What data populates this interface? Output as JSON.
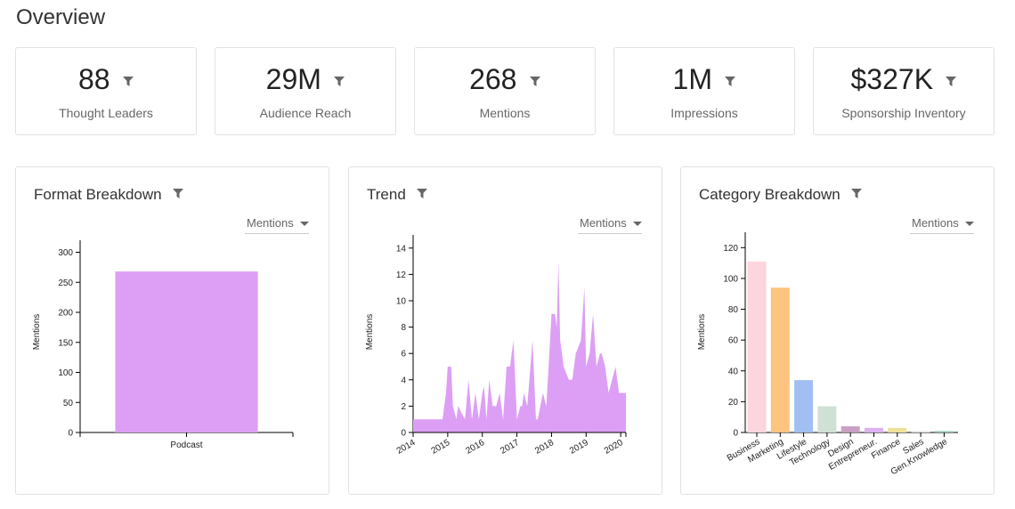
{
  "header": {
    "title": "Overview"
  },
  "stats": [
    {
      "value": "88",
      "label": "Thought Leaders"
    },
    {
      "value": "29M",
      "label": "Audience Reach"
    },
    {
      "value": "268",
      "label": "Mentions"
    },
    {
      "value": "1M",
      "label": "Impressions"
    },
    {
      "value": "$327K",
      "label": "Sponsorship Inventory"
    }
  ],
  "panels": {
    "format": {
      "title": "Format Breakdown",
      "metric": "Mentions"
    },
    "trend": {
      "title": "Trend",
      "metric": "Mentions"
    },
    "category": {
      "title": "Category Breakdown",
      "metric": "Mentions"
    }
  },
  "icons": {
    "filter": "filter-funnel-icon",
    "dropdown": "caret-down-icon"
  },
  "colors": {
    "bar_format": "#dd9ff5",
    "area_trend": "#dd9ff5",
    "category_bars": [
      "#fdd5de",
      "#fcc47e",
      "#a1bff0",
      "#cfe0d4",
      "#c8a0c3",
      "#dcb1f0",
      "#eee29a",
      "#e6e6e6",
      "#9fd0bc"
    ]
  },
  "chart_data": [
    {
      "type": "bar",
      "title": "",
      "categories": [
        "Podcast"
      ],
      "values": [
        268
      ],
      "xlabel": "",
      "ylabel": "Mentions",
      "ylim": [
        0,
        320
      ],
      "yticks": [
        0,
        50,
        100,
        150,
        200,
        250,
        300
      ]
    },
    {
      "type": "area",
      "title": "",
      "xlabel": "",
      "ylabel": "Mentions",
      "ylim": [
        0,
        15
      ],
      "yticks": [
        0,
        2,
        4,
        6,
        8,
        10,
        12,
        14
      ],
      "xticks": [
        "2014",
        "2015",
        "2016",
        "2017",
        "2018",
        "2019",
        "2020"
      ],
      "xlim": [
        2014.0,
        2020.15
      ],
      "x": [
        2014.0,
        2014.5,
        2014.85,
        2014.95,
        2015.0,
        2015.1,
        2015.15,
        2015.25,
        2015.3,
        2015.5,
        2015.6,
        2015.7,
        2015.8,
        2015.9,
        2016.0,
        2016.05,
        2016.12,
        2016.2,
        2016.3,
        2016.4,
        2016.5,
        2016.55,
        2016.6,
        2016.7,
        2016.8,
        2016.9,
        2017.0,
        2017.1,
        2017.15,
        2017.2,
        2017.3,
        2017.45,
        2017.55,
        2017.6,
        2017.75,
        2017.85,
        2018.0,
        2018.1,
        2018.15,
        2018.2,
        2018.25,
        2018.35,
        2018.5,
        2018.6,
        2018.7,
        2018.85,
        2018.95,
        2019.0,
        2019.1,
        2019.2,
        2019.3,
        2019.4,
        2019.45,
        2019.55,
        2019.65,
        2019.75,
        2019.85,
        2019.95,
        2020.05,
        2020.15
      ],
      "y": [
        1,
        1,
        1,
        3,
        5,
        5,
        2,
        1,
        2,
        1,
        4,
        1,
        3,
        1,
        3,
        3.5,
        1,
        4,
        2,
        2,
        3,
        2,
        1,
        5,
        5,
        7,
        1,
        2,
        2,
        3,
        2,
        7,
        1,
        1,
        3,
        2,
        9,
        9,
        8,
        13,
        7,
        5,
        4,
        4,
        6,
        7,
        11,
        5,
        6,
        9,
        5,
        6,
        6,
        5,
        3,
        4,
        5,
        3,
        3,
        3
      ],
      "series": [
        {
          "values": "y"
        }
      ]
    },
    {
      "type": "bar",
      "title": "",
      "categories": [
        "Business",
        "Marketing",
        "Lifestyle",
        "Technology",
        "Design",
        "Entrepreneur.",
        "Finance",
        "Sales",
        "Gen.Knowledge"
      ],
      "values": [
        111,
        94,
        34,
        17,
        4,
        3,
        3,
        1,
        1
      ],
      "xlabel": "",
      "ylabel": "Mentions",
      "ylim": [
        0,
        130
      ],
      "yticks": [
        0,
        20,
        40,
        60,
        80,
        100,
        120
      ]
    }
  ]
}
